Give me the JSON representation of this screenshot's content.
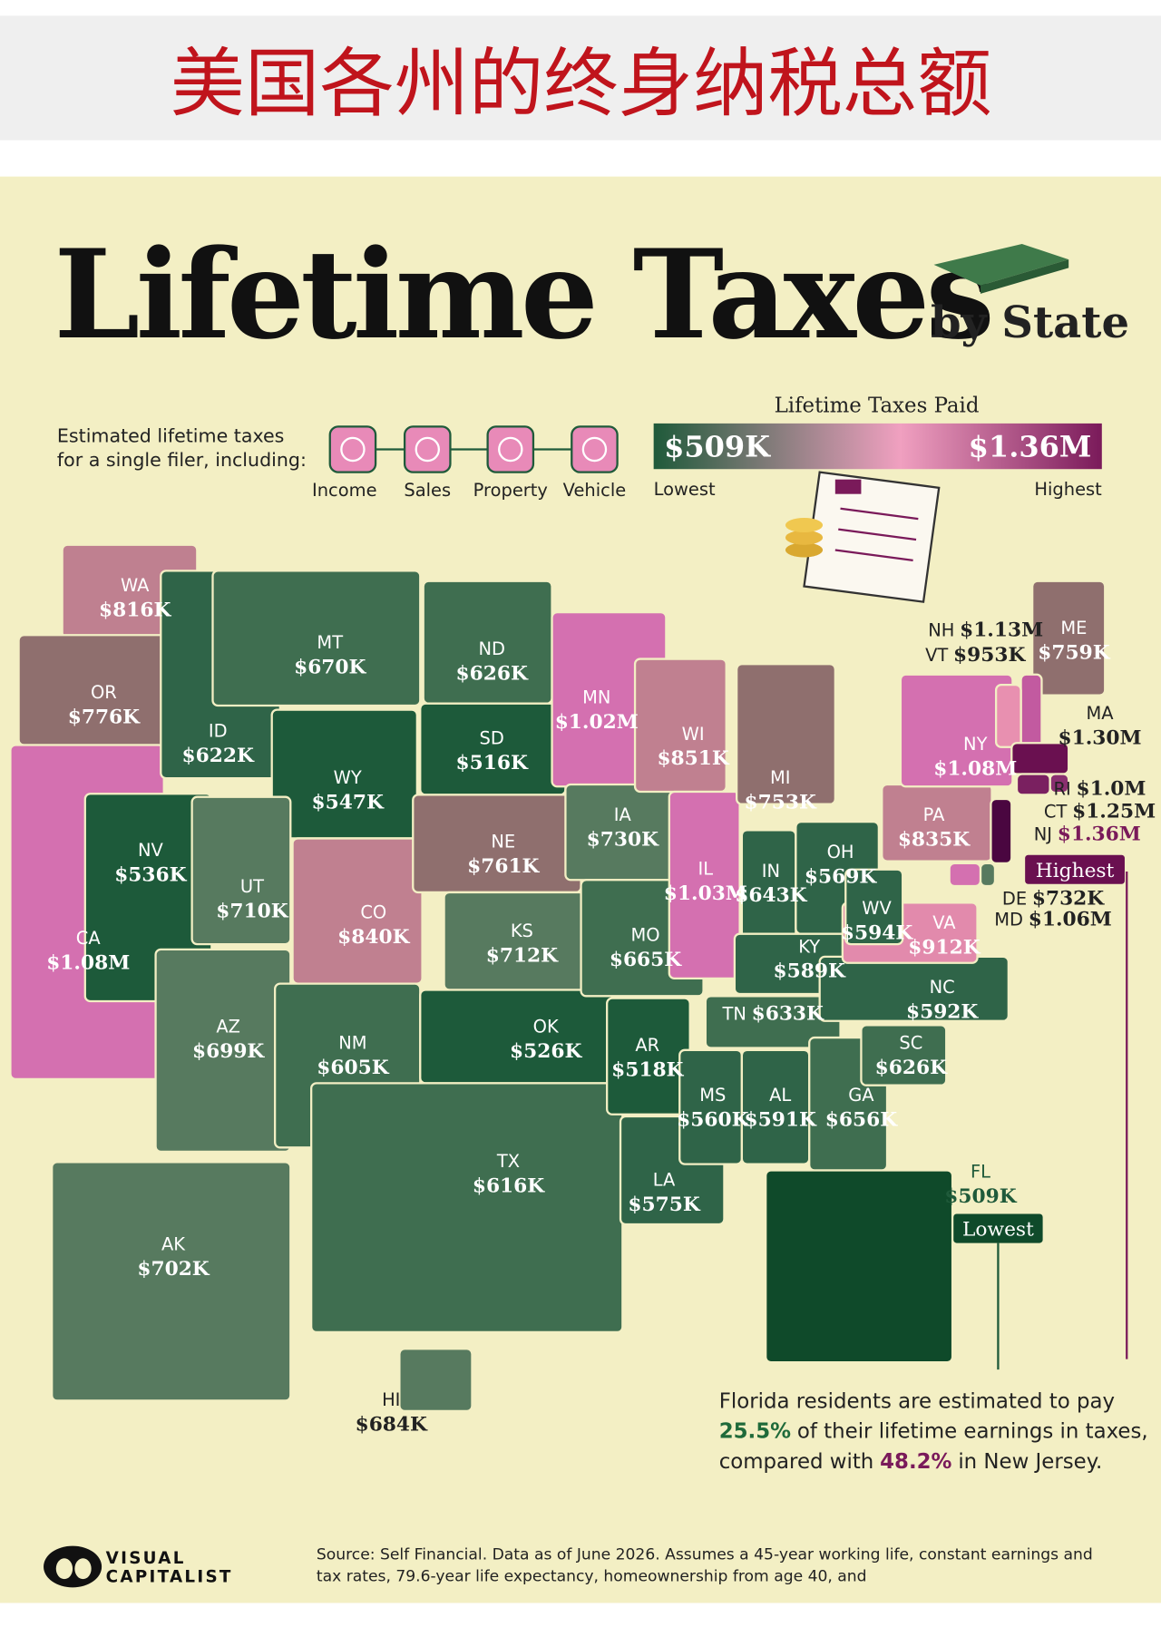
{
  "header": {
    "title": "美国各州的终身纳税总额"
  },
  "title": {
    "main": "Lifetime Taxes",
    "sub": "by State"
  },
  "intro": [
    "Estimated lifetime taxes",
    "for a single filer, including:"
  ],
  "categories": [
    "Income",
    "Sales",
    "Property",
    "Vehicle"
  ],
  "legend": {
    "title": "Lifetime Taxes Paid",
    "low": "$509K",
    "high": "$1.36M",
    "low_label": "Lowest",
    "high_label": "Highest"
  },
  "states": [
    {
      "abbr": "WA",
      "value": "$816K",
      "color": "#bf8090"
    },
    {
      "abbr": "OR",
      "value": "$776K",
      "color": "#8f6f6e"
    },
    {
      "abbr": "CA",
      "value": "$1.08M",
      "color": "#d470b0"
    },
    {
      "abbr": "NV",
      "value": "$536K",
      "color": "#1d5a3a"
    },
    {
      "abbr": "ID",
      "value": "$622K",
      "color": "#2f6448"
    },
    {
      "abbr": "MT",
      "value": "$670K",
      "color": "#3f6e50"
    },
    {
      "abbr": "WY",
      "value": "$547K",
      "color": "#1d5a3a"
    },
    {
      "abbr": "UT",
      "value": "$710K",
      "color": "#577a5f"
    },
    {
      "abbr": "CO",
      "value": "$840K",
      "color": "#c08090"
    },
    {
      "abbr": "AZ",
      "value": "$699K",
      "color": "#577a5f"
    },
    {
      "abbr": "NM",
      "value": "$605K",
      "color": "#3f6e50"
    },
    {
      "abbr": "ND",
      "value": "$626K",
      "color": "#3f6e50"
    },
    {
      "abbr": "SD",
      "value": "$516K",
      "color": "#1d5a3a"
    },
    {
      "abbr": "NE",
      "value": "$761K",
      "color": "#8f6f6e"
    },
    {
      "abbr": "KS",
      "value": "$712K",
      "color": "#577a5f"
    },
    {
      "abbr": "OK",
      "value": "$526K",
      "color": "#1d5a3a"
    },
    {
      "abbr": "TX",
      "value": "$616K",
      "color": "#3f6e50"
    },
    {
      "abbr": "MN",
      "value": "$1.02M",
      "color": "#d470b0"
    },
    {
      "abbr": "IA",
      "value": "$730K",
      "color": "#577a5f"
    },
    {
      "abbr": "MO",
      "value": "$665K",
      "color": "#3f6e50"
    },
    {
      "abbr": "AR",
      "value": "$518K",
      "color": "#1d5a3a"
    },
    {
      "abbr": "LA",
      "value": "$575K",
      "color": "#2f6448"
    },
    {
      "abbr": "WI",
      "value": "$851K",
      "color": "#c08090"
    },
    {
      "abbr": "IL",
      "value": "$1.03M",
      "color": "#d470b0"
    },
    {
      "abbr": "MI",
      "value": "$753K",
      "color": "#8f6f6e"
    },
    {
      "abbr": "IN",
      "value": "$643K",
      "color": "#2f6448"
    },
    {
      "abbr": "OH",
      "value": "$569K",
      "color": "#2f6448"
    },
    {
      "abbr": "KY",
      "value": "$589K",
      "color": "#2f6448"
    },
    {
      "abbr": "TN",
      "value": "$633K",
      "color": "#3f6e50"
    },
    {
      "abbr": "MS",
      "value": "$560K",
      "color": "#2f6448"
    },
    {
      "abbr": "AL",
      "value": "$591K",
      "color": "#2f6448"
    },
    {
      "abbr": "GA",
      "value": "$656K",
      "color": "#3f6e50"
    },
    {
      "abbr": "FL",
      "value": "$509K",
      "color": "#0f4a2a"
    },
    {
      "abbr": "SC",
      "value": "$626K",
      "color": "#3f6e50"
    },
    {
      "abbr": "NC",
      "value": "$592K",
      "color": "#2f6448"
    },
    {
      "abbr": "VA",
      "value": "$912K",
      "color": "#e28aac"
    },
    {
      "abbr": "WV",
      "value": "$594K",
      "color": "#2f6448"
    },
    {
      "abbr": "PA",
      "value": "$835K",
      "color": "#c08090"
    },
    {
      "abbr": "NY",
      "value": "$1.08M",
      "color": "#d470b0"
    },
    {
      "abbr": "ME",
      "value": "$759K",
      "color": "#8f6f6e"
    },
    {
      "abbr": "NH",
      "value": "$1.13M",
      "color": "#c25aa0"
    },
    {
      "abbr": "VT",
      "value": "$953K",
      "color": "#e890b0"
    },
    {
      "abbr": "MA",
      "value": "$1.30M",
      "color": "#6a1050"
    },
    {
      "abbr": "RI",
      "value": "$1.0M",
      "color": "#8a3070"
    },
    {
      "abbr": "CT",
      "value": "$1.25M",
      "color": "#7a2060"
    },
    {
      "abbr": "NJ",
      "value": "$1.36M",
      "color": "#4a0640"
    },
    {
      "abbr": "DE",
      "value": "$732K",
      "color": "#577a5f"
    },
    {
      "abbr": "MD",
      "value": "$1.06M",
      "color": "#d470b0"
    },
    {
      "abbr": "AK",
      "value": "$702K",
      "color": "#577a5f"
    },
    {
      "abbr": "HI",
      "value": "$684K",
      "color": "#577a5f"
    }
  ],
  "callouts": {
    "highest": "Highest",
    "lowest": "Lowest"
  },
  "note": [
    "Florida residents are estimated to pay",
    "25.5%",
    "of their lifetime earnings in taxes,",
    "compared with",
    "48.2%",
    "in New Jersey."
  ],
  "source": [
    "Source: Self Financial. Data as of June 2026. Assumes a 45-year working life, constant earnings and",
    "tax rates, 79.6-year life expectancy, homeownership from age 40, and"
  ],
  "logo": [
    "VISUAL",
    "CAPITALIST"
  ]
}
